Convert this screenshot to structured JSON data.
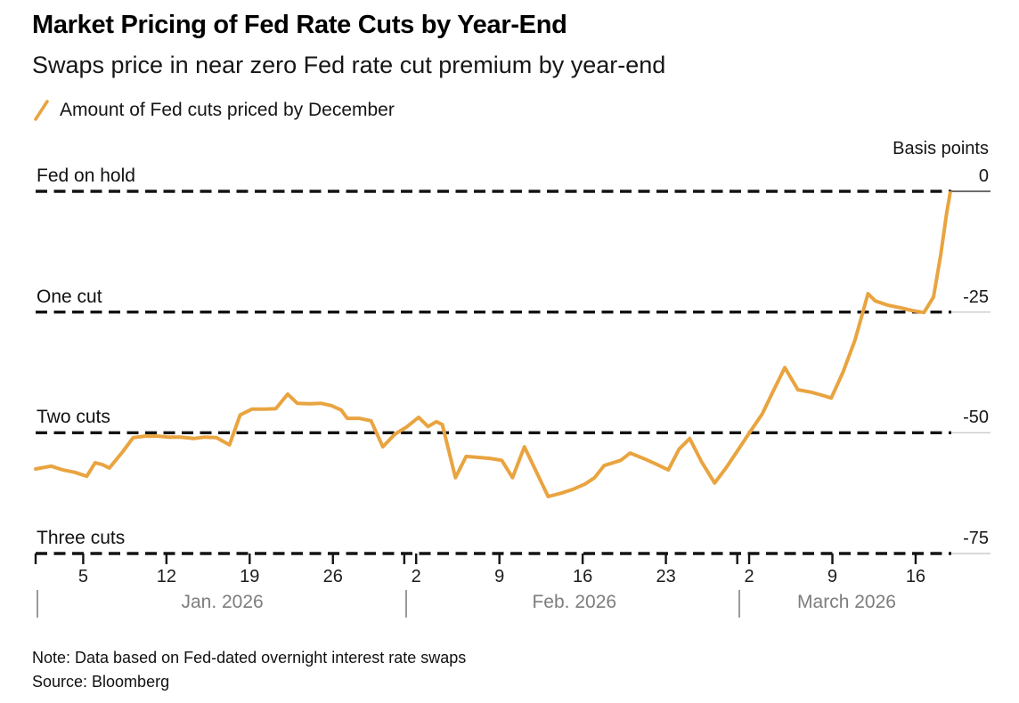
{
  "header": {
    "title": "Market Pricing of Fed Rate Cuts by Year-End",
    "subtitle": "Swaps price in near zero Fed rate cut premium by year-end"
  },
  "legend": {
    "label": "Amount of Fed cuts priced by December"
  },
  "footer": {
    "note": "Note: Data based on Fed-dated overnight interest rate swaps",
    "source": "Source: Bloomberg"
  },
  "colors": {
    "series": "#E9A440",
    "grid_dash": "#141414",
    "extension_dark": "#3c3c3c",
    "extension_light": "#cbcbcb",
    "month_text": "#7d7d7d"
  },
  "chart_data": {
    "type": "line",
    "title": "Market Pricing of Fed Rate Cuts by Year-End",
    "series_name": "Amount of Fed cuts priced by December",
    "y_axis": {
      "unit_label": "Basis points",
      "range": [
        0,
        -75
      ],
      "gridlines": [
        {
          "value": 0,
          "right_label": "0",
          "left_label": "Fed on hold"
        },
        {
          "value": -25,
          "right_label": "-25",
          "left_label": "One cut"
        },
        {
          "value": -50,
          "right_label": "-50",
          "left_label": "Two cuts"
        },
        {
          "value": -75,
          "right_label": "-75",
          "left_label": "Three cuts"
        }
      ]
    },
    "x_axis": {
      "day_zero_date": "2026-01-01",
      "domain_days": [
        0,
        77
      ],
      "ticks": [
        {
          "label": "5",
          "day": 4
        },
        {
          "label": "12",
          "day": 11
        },
        {
          "label": "19",
          "day": 18
        },
        {
          "label": "26",
          "day": 25
        },
        {
          "label": "2",
          "day": 32
        },
        {
          "label": "9",
          "day": 39
        },
        {
          "label": "16",
          "day": 46
        },
        {
          "label": "23",
          "day": 53
        },
        {
          "label": "2",
          "day": 60
        },
        {
          "label": "9",
          "day": 67
        },
        {
          "label": "16",
          "day": 74
        }
      ],
      "boundary_tick_days": [
        0,
        31,
        59
      ],
      "months": [
        {
          "label": "Jan. 2026",
          "pipe_day": 0,
          "center_day": 15.7
        },
        {
          "label": "Feb. 2026",
          "pipe_day": 31,
          "center_day": 45.3
        },
        {
          "label": "March 2026",
          "pipe_day": 59,
          "center_day": 68.2
        }
      ]
    },
    "points": [
      [
        0,
        -57.5
      ],
      [
        1.3,
        -56.9
      ],
      [
        2.3,
        -57.7
      ],
      [
        3.3,
        -58.2
      ],
      [
        4.3,
        -59.0
      ],
      [
        5.0,
        -56.2
      ],
      [
        5.6,
        -56.6
      ],
      [
        6.2,
        -57.3
      ],
      [
        7.3,
        -54.0
      ],
      [
        8.2,
        -51.0
      ],
      [
        9.2,
        -50.7
      ],
      [
        10.3,
        -50.7
      ],
      [
        11.2,
        -50.9
      ],
      [
        12.2,
        -50.9
      ],
      [
        13.3,
        -51.2
      ],
      [
        14.2,
        -50.9
      ],
      [
        15.2,
        -51.0
      ],
      [
        16.3,
        -52.5
      ],
      [
        17.2,
        -46.3
      ],
      [
        18.2,
        -45.1
      ],
      [
        19.3,
        -45.1
      ],
      [
        20.2,
        -45.0
      ],
      [
        21.2,
        -42.0
      ],
      [
        22.0,
        -43.9
      ],
      [
        23.0,
        -44.0
      ],
      [
        24.0,
        -43.9
      ],
      [
        24.9,
        -44.4
      ],
      [
        25.7,
        -45.3
      ],
      [
        26.2,
        -47.0
      ],
      [
        27.2,
        -47.0
      ],
      [
        28.2,
        -47.5
      ],
      [
        29.2,
        -52.9
      ],
      [
        30.2,
        -50.3
      ],
      [
        31.2,
        -48.8
      ],
      [
        32.2,
        -46.8
      ],
      [
        33.0,
        -48.7
      ],
      [
        33.7,
        -47.7
      ],
      [
        34.2,
        -48.3
      ],
      [
        35.3,
        -59.3
      ],
      [
        36.2,
        -54.9
      ],
      [
        37.2,
        -55.1
      ],
      [
        38.2,
        -55.3
      ],
      [
        39.2,
        -55.7
      ],
      [
        40.1,
        -59.3
      ],
      [
        41.1,
        -52.9
      ],
      [
        43.1,
        -63.2
      ],
      [
        44.2,
        -62.5
      ],
      [
        45.2,
        -61.7
      ],
      [
        46.2,
        -60.6
      ],
      [
        47.0,
        -59.3
      ],
      [
        47.8,
        -56.8
      ],
      [
        49.2,
        -55.7
      ],
      [
        50.0,
        -54.2
      ],
      [
        51.1,
        -55.3
      ],
      [
        52.1,
        -56.4
      ],
      [
        53.2,
        -57.7
      ],
      [
        54.1,
        -53.4
      ],
      [
        55.0,
        -51.2
      ],
      [
        56.0,
        -56.0
      ],
      [
        57.1,
        -60.4
      ],
      [
        58.1,
        -57.1
      ],
      [
        59.0,
        -53.8
      ],
      [
        60.0,
        -50.1
      ],
      [
        61.1,
        -46.1
      ],
      [
        62.0,
        -41.5
      ],
      [
        63.0,
        -36.5
      ],
      [
        64.1,
        -41.1
      ],
      [
        65.2,
        -41.6
      ],
      [
        66.1,
        -42.2
      ],
      [
        66.9,
        -42.8
      ],
      [
        67.9,
        -37.4
      ],
      [
        68.9,
        -30.8
      ],
      [
        70.0,
        -21.2
      ],
      [
        70.6,
        -22.7
      ],
      [
        71.7,
        -23.6
      ],
      [
        72.7,
        -24.1
      ],
      [
        73.7,
        -24.7
      ],
      [
        74.7,
        -25.1
      ],
      [
        75.5,
        -21.9
      ],
      [
        76.1,
        -13.3
      ],
      [
        76.6,
        -4.6
      ],
      [
        76.9,
        -0.3
      ]
    ]
  }
}
